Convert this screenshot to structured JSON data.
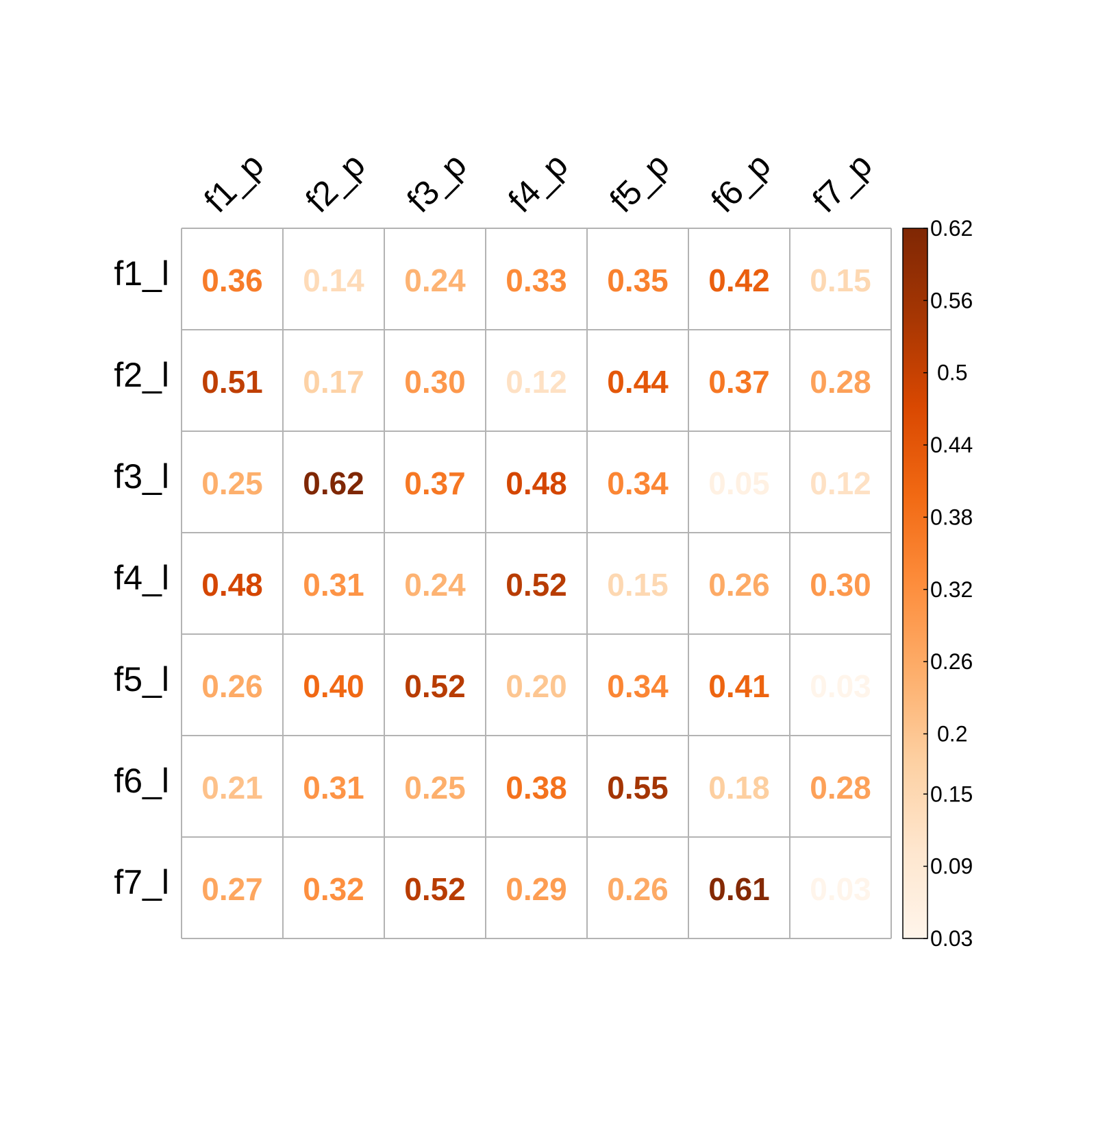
{
  "colors": {
    "palette": [
      "#fff5eb",
      "#fee6ce",
      "#fdd0a2",
      "#fdae6b",
      "#fd8d3c",
      "#f16913",
      "#d94801",
      "#a63603",
      "#7f2704"
    ],
    "grid": "#b3b3b3",
    "text": "#000000"
  },
  "chart_data": {
    "type": "heatmap",
    "title": "",
    "xlabel": "",
    "ylabel": "",
    "columns": [
      "f1_p",
      "f2_p",
      "f3_p",
      "f4_p",
      "f5_p",
      "f6_p",
      "f7_p"
    ],
    "rows": [
      "f1_l",
      "f2_l",
      "f3_l",
      "f4_l",
      "f5_l",
      "f6_l",
      "f7_l"
    ],
    "values": [
      [
        0.36,
        0.14,
        0.24,
        0.33,
        0.35,
        0.42,
        0.15
      ],
      [
        0.51,
        0.17,
        0.3,
        0.12,
        0.44,
        0.37,
        0.28
      ],
      [
        0.25,
        0.62,
        0.37,
        0.48,
        0.34,
        0.05,
        0.12
      ],
      [
        0.48,
        0.31,
        0.24,
        0.52,
        0.15,
        0.26,
        0.3
      ],
      [
        0.26,
        0.4,
        0.52,
        0.2,
        0.34,
        0.41,
        0.03
      ],
      [
        0.21,
        0.31,
        0.25,
        0.38,
        0.55,
        0.18,
        0.28
      ],
      [
        0.27,
        0.32,
        0.52,
        0.29,
        0.26,
        0.61,
        0.03
      ]
    ],
    "cell_labels": [
      [
        "0.36",
        "0.14",
        "0.24",
        "0.33",
        "0.35",
        "0.42",
        "0.15"
      ],
      [
        "0.51",
        "0.17",
        "0.30",
        "0.12",
        "0.44",
        "0.37",
        "0.28"
      ],
      [
        "0.25",
        "0.62",
        "0.37",
        "0.48",
        "0.34",
        "0.05",
        "0.12"
      ],
      [
        "0.48",
        "0.31",
        "0.24",
        "0.52",
        "0.15",
        "0.26",
        "0.30"
      ],
      [
        "0.26",
        "0.40",
        "0.52",
        "0.20",
        "0.34",
        "0.41",
        "0.03"
      ],
      [
        "0.21",
        "0.31",
        "0.25",
        "0.38",
        "0.55",
        "0.18",
        "0.28"
      ],
      [
        "0.27",
        "0.32",
        "0.52",
        "0.29",
        "0.26",
        "0.61",
        "0.03"
      ]
    ],
    "colorbar": {
      "range": [
        0.03,
        0.62
      ],
      "ticks": [
        0.62,
        0.56,
        0.5,
        0.44,
        0.38,
        0.32,
        0.26,
        0.2,
        0.15,
        0.09,
        0.03
      ],
      "tick_labels": [
        "0.62",
        "0.56",
        "0.5",
        "0.44",
        "0.38",
        "0.32",
        "0.26",
        "0.2",
        "0.15",
        "0.09",
        "0.03"
      ],
      "position": "right"
    },
    "grid": true
  }
}
